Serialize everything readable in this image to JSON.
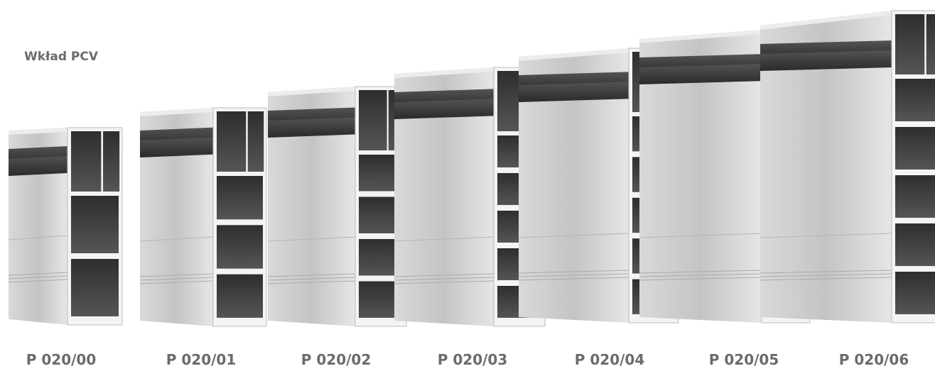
{
  "header": {
    "title": "Wkład PCV"
  },
  "products": [
    {
      "label": "P 020/00"
    },
    {
      "label": "P 020/01"
    },
    {
      "label": "P 020/02"
    },
    {
      "label": "P 020/03"
    },
    {
      "label": "P 020/04"
    },
    {
      "label": "P 020/05"
    },
    {
      "label": "P 020/06"
    }
  ]
}
